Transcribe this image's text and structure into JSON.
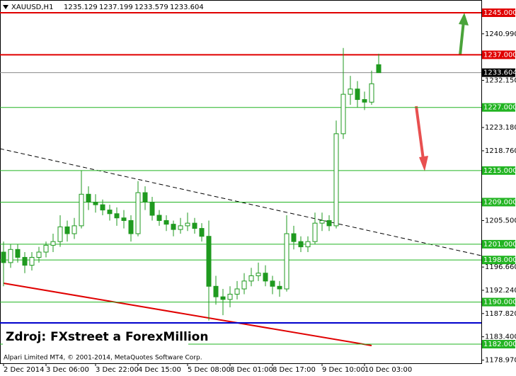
{
  "chart_data": {
    "type": "candlestick",
    "symbol": "XAUUSD,H1",
    "watermark": "Zdroj: FXstreet a ForexMillion",
    "footer": "Alpari Limited MT4, © 2001-2014, MetaQuotes Software Corp.",
    "ylim": [
      1178.37,
      1247.42
    ],
    "xlim": [
      -0.5,
      67.5
    ],
    "yticks": [
      {
        "value": 1240.99,
        "label": "1240.990"
      },
      {
        "value": 1232.15,
        "label": "1232.150"
      },
      {
        "value": 1223.18,
        "label": "1223.180"
      },
      {
        "value": 1218.76,
        "label": "1218.760"
      },
      {
        "value": 1205.5,
        "label": "1205.500"
      },
      {
        "value": 1196.66,
        "label": "1196.660"
      },
      {
        "value": 1192.24,
        "label": "1192.240"
      },
      {
        "value": 1187.82,
        "label": "1187.820"
      },
      {
        "value": 1183.4,
        "label": "1183.400"
      },
      {
        "value": 1178.97,
        "label": "1178.970"
      }
    ],
    "xticks": [
      {
        "value": 0,
        "label": "2 Dec 2014"
      },
      {
        "value": 6,
        "label": "3 Dec 06:00"
      },
      {
        "value": 13,
        "label": "3 Dec 22:00"
      },
      {
        "value": 19,
        "label": "4 Dec 15:00"
      },
      {
        "value": 26,
        "label": "5 Dec 08:00"
      },
      {
        "value": 32,
        "label": "8 Dec 01:00"
      },
      {
        "value": 38,
        "label": "8 Dec 17:00"
      },
      {
        "value": 45,
        "label": "9 Dec 10:00"
      },
      {
        "value": 51,
        "label": "10 Dec 03:00"
      }
    ],
    "levels": [
      {
        "value": 1245,
        "label": "1245.000",
        "color": "#e00000"
      },
      {
        "value": 1237,
        "label": "1237.000",
        "color": "#e00000"
      },
      {
        "value": 1233.604,
        "label": "1233.604",
        "color": "#000000"
      },
      {
        "value": 1227,
        "label": "1227.000",
        "color": "#22b422"
      },
      {
        "value": 1215,
        "label": "1215.000",
        "color": "#22b422"
      },
      {
        "value": 1209,
        "label": "1209.000",
        "color": "#22b422"
      },
      {
        "value": 1201,
        "label": "1201.000",
        "color": "#22b422"
      },
      {
        "value": 1198,
        "label": "1198.000",
        "color": "#22b422"
      },
      {
        "value": 1190,
        "label": "1190.000",
        "color": "#22b422"
      },
      {
        "value": 1182,
        "label": "1182.000",
        "color": "#22b422"
      },
      {
        "value": 1186.05,
        "color": "#0000cc"
      }
    ],
    "candle_color": "#1f9a1f",
    "ohlc": [
      [
        1199.5,
        1201.5,
        1193.0,
        1197.5
      ],
      [
        1197.5,
        1201.0,
        1196.5,
        1200.0
      ],
      [
        1200.0,
        1201.0,
        1197.5,
        1198.5
      ],
      [
        1198.5,
        1199.5,
        1195.5,
        1197.0
      ],
      [
        1197.0,
        1199.5,
        1196.0,
        1198.5
      ],
      [
        1198.5,
        1200.5,
        1197.5,
        1199.5
      ],
      [
        1199.5,
        1201.5,
        1198.5,
        1200.8
      ],
      [
        1200.8,
        1203.0,
        1199.5,
        1201.5
      ],
      [
        1201.5,
        1206.5,
        1200.5,
        1204.3
      ],
      [
        1204.3,
        1205.5,
        1201.5,
        1203.0
      ],
      [
        1203.0,
        1206.0,
        1202.0,
        1204.5
      ],
      [
        1204.5,
        1215.0,
        1204.0,
        1210.5
      ],
      [
        1210.5,
        1212.0,
        1207.5,
        1209.0
      ],
      [
        1209.0,
        1210.5,
        1207.0,
        1208.5
      ],
      [
        1208.5,
        1209.5,
        1206.5,
        1207.5
      ],
      [
        1207.5,
        1208.5,
        1205.5,
        1206.8
      ],
      [
        1206.8,
        1208.0,
        1204.5,
        1206.0
      ],
      [
        1206.0,
        1207.5,
        1204.0,
        1205.5
      ],
      [
        1205.5,
        1206.5,
        1201.5,
        1203.0
      ],
      [
        1203.0,
        1213.0,
        1202.5,
        1210.8
      ],
      [
        1210.8,
        1212.0,
        1207.5,
        1209.0
      ],
      [
        1209.0,
        1210.0,
        1205.5,
        1206.5
      ],
      [
        1206.5,
        1207.5,
        1204.5,
        1205.5
      ],
      [
        1205.5,
        1206.5,
        1203.5,
        1204.8
      ],
      [
        1204.8,
        1205.5,
        1202.5,
        1203.8
      ],
      [
        1203.8,
        1206.0,
        1203.0,
        1204.5
      ],
      [
        1204.5,
        1207.0,
        1203.5,
        1205.0
      ],
      [
        1205.0,
        1206.0,
        1203.0,
        1204.0
      ],
      [
        1204.0,
        1205.0,
        1201.5,
        1202.5
      ],
      [
        1202.5,
        1205.5,
        1186.5,
        1193.0
      ],
      [
        1193.0,
        1195.0,
        1189.5,
        1191.0
      ],
      [
        1191.0,
        1192.5,
        1187.5,
        1190.5
      ],
      [
        1190.5,
        1193.0,
        1189.0,
        1191.5
      ],
      [
        1191.5,
        1194.0,
        1190.5,
        1192.5
      ],
      [
        1192.5,
        1195.5,
        1191.5,
        1194.0
      ],
      [
        1194.0,
        1196.5,
        1193.0,
        1195.0
      ],
      [
        1195.0,
        1197.5,
        1194.0,
        1195.5
      ],
      [
        1195.5,
        1197.0,
        1193.0,
        1194.0
      ],
      [
        1194.0,
        1195.0,
        1191.5,
        1193.0
      ],
      [
        1193.0,
        1194.0,
        1191.0,
        1192.5
      ],
      [
        1192.5,
        1206.5,
        1192.0,
        1203.0
      ],
      [
        1203.0,
        1204.5,
        1200.0,
        1201.5
      ],
      [
        1201.5,
        1202.5,
        1199.5,
        1200.5
      ],
      [
        1200.5,
        1202.5,
        1199.5,
        1201.5
      ],
      [
        1201.5,
        1207.0,
        1201.0,
        1205.0
      ],
      [
        1205.0,
        1207.0,
        1203.5,
        1205.5
      ],
      [
        1205.5,
        1206.5,
        1203.5,
        1204.5
      ],
      [
        1204.5,
        1224.5,
        1204.0,
        1222.0
      ],
      [
        1222.0,
        1238.3,
        1221.0,
        1229.5
      ],
      [
        1229.5,
        1233.0,
        1227.5,
        1230.5
      ],
      [
        1230.5,
        1232.0,
        1227.0,
        1228.5
      ],
      [
        1228.5,
        1230.0,
        1226.5,
        1228.0
      ],
      [
        1228.0,
        1234.0,
        1227.5,
        1231.5
      ],
      [
        1235.129,
        1237.199,
        1233.579,
        1233.604
      ]
    ]
  }
}
